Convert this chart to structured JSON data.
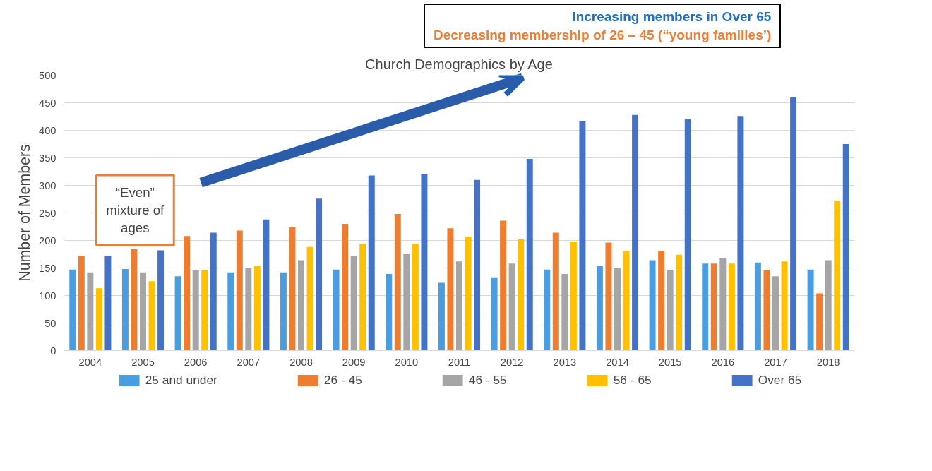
{
  "chart_data": {
    "type": "bar",
    "title": "Church Demographics by Age",
    "ylabel": "Number of Members",
    "categories": [
      "2004",
      "2005",
      "2006",
      "2007",
      "2008",
      "2009",
      "2010",
      "2011",
      "2012",
      "2013",
      "2014",
      "2015",
      "2016",
      "2017",
      "2018"
    ],
    "series": [
      {
        "name": "25 and under",
        "color": "#4a9ee0",
        "values": [
          147,
          148,
          135,
          142,
          142,
          147,
          139,
          123,
          133,
          147,
          154,
          164,
          158,
          160,
          147
        ]
      },
      {
        "name": "26 - 45",
        "color": "#ed7d31",
        "values": [
          172,
          184,
          208,
          218,
          224,
          230,
          248,
          222,
          236,
          214,
          196,
          180,
          158,
          146,
          104
        ]
      },
      {
        "name": "46 - 55",
        "color": "#a5a5a5",
        "values": [
          142,
          142,
          146,
          150,
          164,
          172,
          176,
          162,
          158,
          139,
          150,
          146,
          168,
          135,
          164
        ]
      },
      {
        "name": "56 - 65",
        "color": "#ffc000",
        "values": [
          113,
          126,
          146,
          154,
          188,
          194,
          194,
          206,
          202,
          198,
          180,
          174,
          158,
          162,
          272
        ]
      },
      {
        "name": "Over 65",
        "color": "#4472c4",
        "values": [
          172,
          182,
          214,
          238,
          276,
          318,
          321,
          310,
          348,
          416,
          428,
          420,
          426,
          460,
          375
        ]
      }
    ],
    "ylim": [
      0,
      500
    ],
    "yticks": [
      0,
      50,
      100,
      150,
      200,
      250,
      300,
      350,
      400,
      450,
      500
    ],
    "grid": "y",
    "legend": "bottom",
    "annotations": [
      "“Even”\nmixture of\nages",
      "Increasing members in Over 65",
      "Decreasing membership of 26 – 45 (“young families’)"
    ]
  }
}
